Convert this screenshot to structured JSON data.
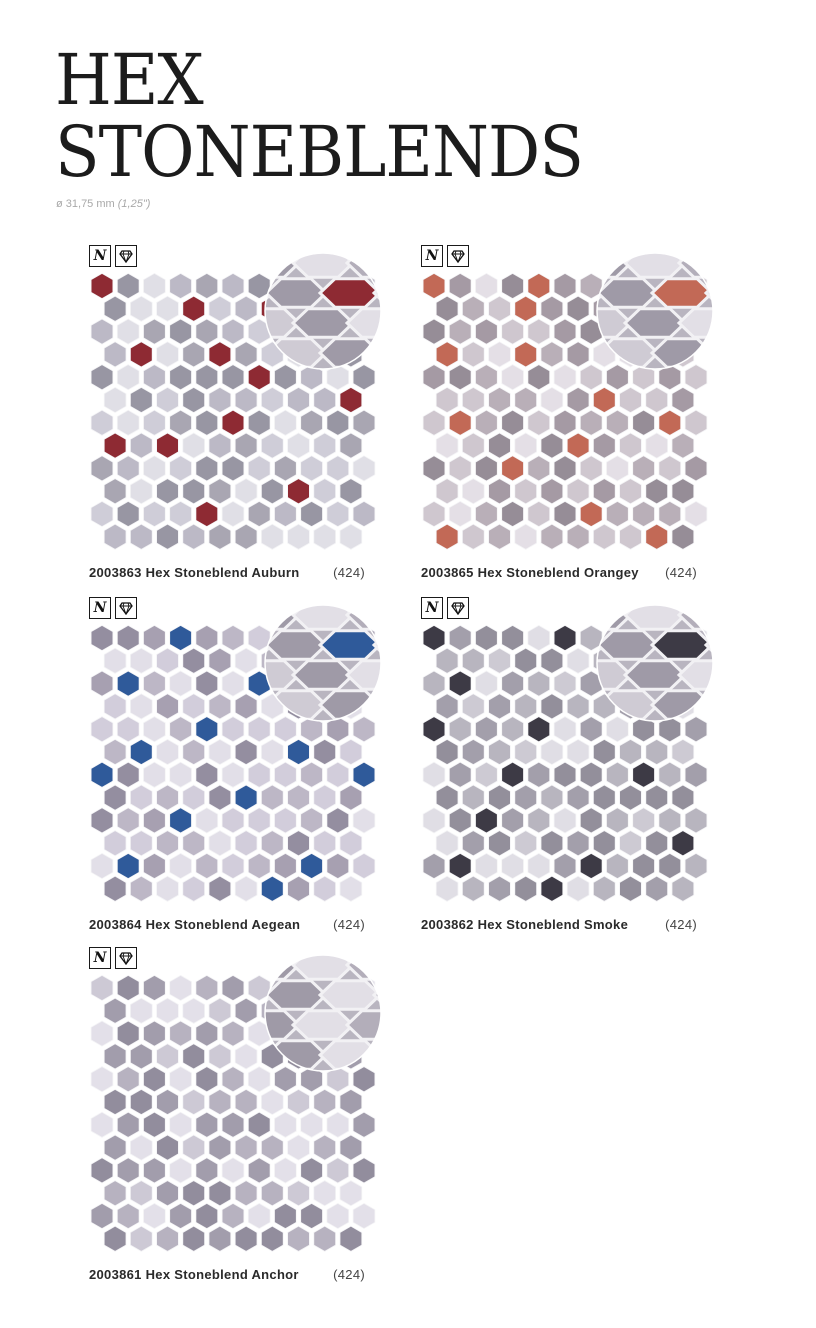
{
  "title": {
    "line1": "HEX",
    "line2": "STONEBLENDS"
  },
  "spec": {
    "main": "ø 31,75 mm",
    "imperial": "(1,25\")"
  },
  "badges": {
    "n_label": "N",
    "gem_icon": "diamond-icon"
  },
  "products": [
    {
      "name": "2003863 Hex Stoneblend Auburn",
      "code": "(424)",
      "accent": "#8e2a33",
      "base": [
        "#a9a6b2",
        "#bcb9c6",
        "#cfcdd8",
        "#9896a3",
        "#e0dfe6"
      ]
    },
    {
      "name": "2003865 Hex Stoneblend Orangey",
      "code": "(424)",
      "accent": "#c26956",
      "base": [
        "#a59aa4",
        "#b9afb8",
        "#cfc7cf",
        "#968d97",
        "#e4dfe6"
      ]
    },
    {
      "name": "2003864 Hex Stoneblend Aegean",
      "code": "(424)",
      "accent": "#2f5a9a",
      "base": [
        "#a7a0b1",
        "#bdb7c6",
        "#d2cddb",
        "#948ea0",
        "#e2dfe8"
      ]
    },
    {
      "name": "2003862 Hex Stoneblend Smoke",
      "code": "(424)",
      "accent": "#3d3a45",
      "base": [
        "#a39fab",
        "#b8b5bf",
        "#cdcad3",
        "#938f9b",
        "#e0dee5"
      ]
    },
    {
      "name": "2003861 Hex Stoneblend Anchor",
      "code": "(424)",
      "accent": "#8f8a99",
      "base": [
        "#a29dac",
        "#b7b2c0",
        "#cdc9d5",
        "#928d9d",
        "#e3e0e9"
      ]
    }
  ]
}
